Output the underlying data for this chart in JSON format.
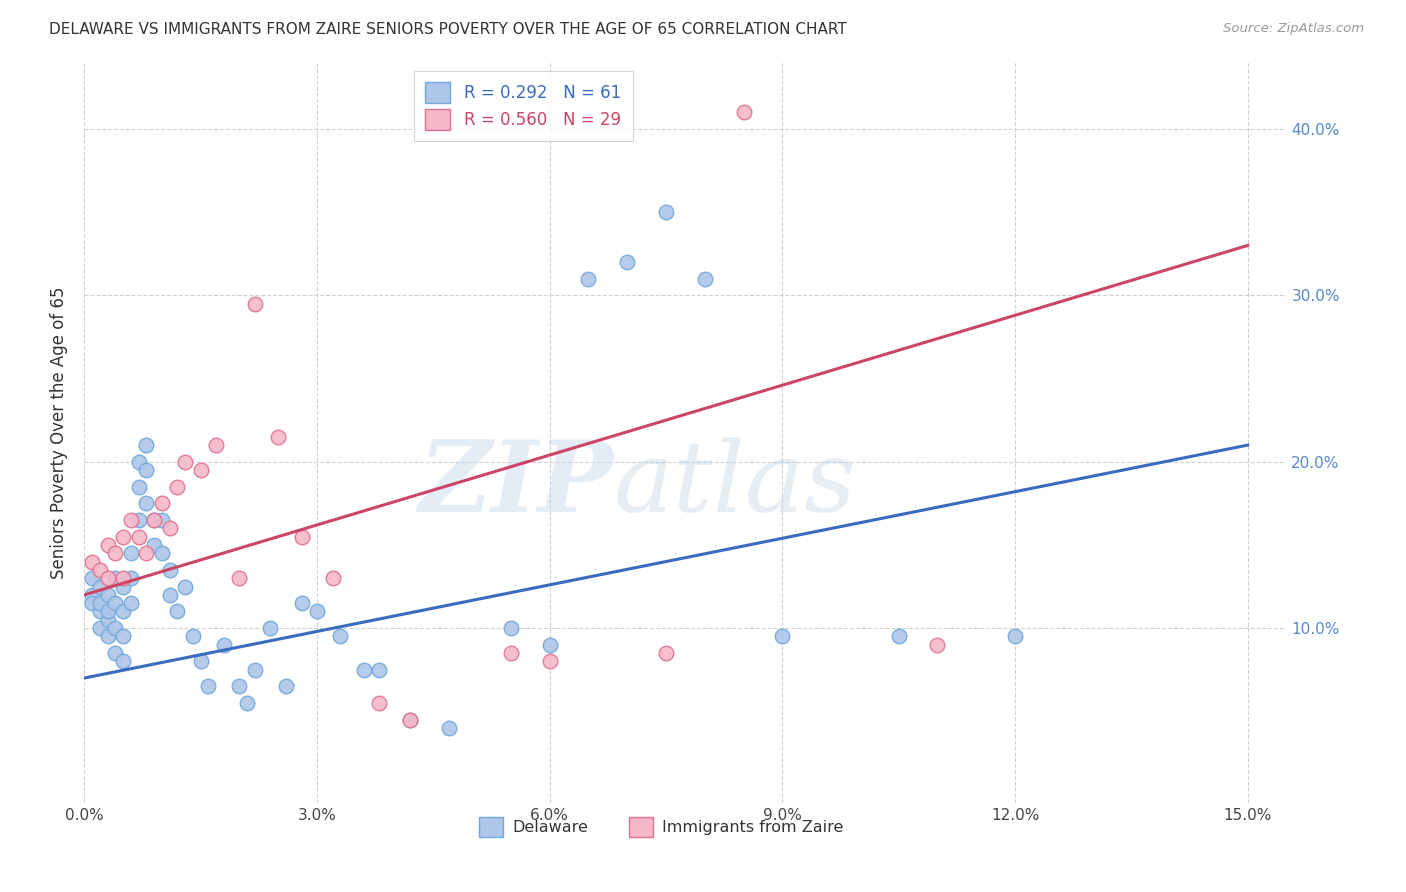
{
  "title": "DELAWARE VS IMMIGRANTS FROM ZAIRE SENIORS POVERTY OVER THE AGE OF 65 CORRELATION CHART",
  "source": "Source: ZipAtlas.com",
  "ylabel": "Seniors Poverty Over the Age of 65",
  "xlim": [
    0.0,
    0.155
  ],
  "ylim": [
    -0.005,
    0.44
  ],
  "xticks": [
    0.0,
    0.03,
    0.06,
    0.09,
    0.12,
    0.15
  ],
  "xticklabels": [
    "0.0%",
    "3.0%",
    "6.0%",
    "9.0%",
    "12.0%",
    "15.0%"
  ],
  "yticks": [
    0.1,
    0.2,
    0.3,
    0.4
  ],
  "yticklabels": [
    "10.0%",
    "20.0%",
    "30.0%",
    "40.0%"
  ],
  "background_color": "#ffffff",
  "grid_color": "#cccccc",
  "watermark_zip": "ZIP",
  "watermark_atlas": "atlas",
  "delaware_color": "#aec6e8",
  "delaware_edge": "#6fa8dc",
  "zaire_color": "#f4b8c8",
  "zaire_edge": "#e07090",
  "delaware_line_color": "#3a6bbf",
  "zaire_line_color": "#cc4466",
  "legend_label_blue": "R = 0.292   N = 61",
  "legend_label_pink": "R = 0.560   N = 29",
  "legend_bottom_blue": "Delaware",
  "legend_bottom_pink": "Immigrants from Zaire",
  "del_line_y0": 0.07,
  "del_line_y1": 0.21,
  "zaire_line_y0": 0.12,
  "zaire_line_y1": 0.33,
  "delaware_x": [
    0.001,
    0.001,
    0.001,
    0.002,
    0.002,
    0.002,
    0.002,
    0.003,
    0.003,
    0.003,
    0.003,
    0.004,
    0.004,
    0.004,
    0.004,
    0.005,
    0.005,
    0.005,
    0.005,
    0.006,
    0.006,
    0.006,
    0.007,
    0.007,
    0.007,
    0.008,
    0.008,
    0.008,
    0.009,
    0.009,
    0.01,
    0.01,
    0.011,
    0.011,
    0.012,
    0.013,
    0.014,
    0.015,
    0.016,
    0.018,
    0.02,
    0.021,
    0.022,
    0.024,
    0.026,
    0.028,
    0.03,
    0.033,
    0.036,
    0.038,
    0.042,
    0.047,
    0.055,
    0.06,
    0.065,
    0.07,
    0.075,
    0.08,
    0.09,
    0.105,
    0.12
  ],
  "delaware_y": [
    0.13,
    0.12,
    0.115,
    0.125,
    0.11,
    0.115,
    0.1,
    0.12,
    0.105,
    0.11,
    0.095,
    0.13,
    0.115,
    0.1,
    0.085,
    0.125,
    0.11,
    0.095,
    0.08,
    0.145,
    0.13,
    0.115,
    0.2,
    0.185,
    0.165,
    0.21,
    0.195,
    0.175,
    0.165,
    0.15,
    0.165,
    0.145,
    0.135,
    0.12,
    0.11,
    0.125,
    0.095,
    0.08,
    0.065,
    0.09,
    0.065,
    0.055,
    0.075,
    0.1,
    0.065,
    0.115,
    0.11,
    0.095,
    0.075,
    0.075,
    0.045,
    0.04,
    0.1,
    0.09,
    0.31,
    0.32,
    0.35,
    0.31,
    0.095,
    0.095,
    0.095
  ],
  "zaire_x": [
    0.001,
    0.002,
    0.003,
    0.003,
    0.004,
    0.005,
    0.005,
    0.006,
    0.007,
    0.008,
    0.009,
    0.01,
    0.011,
    0.012,
    0.013,
    0.015,
    0.017,
    0.02,
    0.022,
    0.025,
    0.028,
    0.032,
    0.038,
    0.042,
    0.055,
    0.06,
    0.075,
    0.085,
    0.11
  ],
  "zaire_y": [
    0.14,
    0.135,
    0.15,
    0.13,
    0.145,
    0.155,
    0.13,
    0.165,
    0.155,
    0.145,
    0.165,
    0.175,
    0.16,
    0.185,
    0.2,
    0.195,
    0.21,
    0.13,
    0.295,
    0.215,
    0.155,
    0.13,
    0.055,
    0.045,
    0.085,
    0.08,
    0.085,
    0.41,
    0.09
  ]
}
